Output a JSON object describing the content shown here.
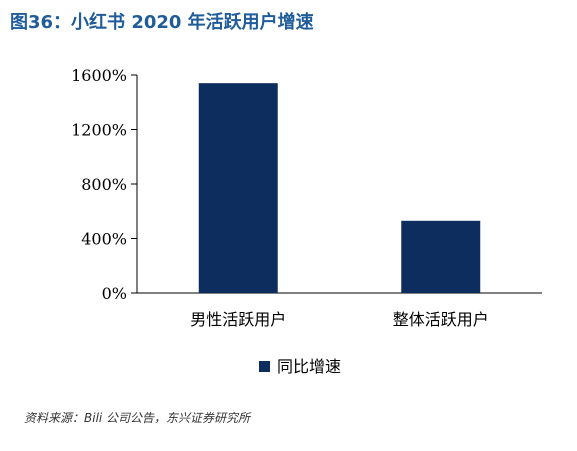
{
  "title": "图36：小红书 2020 年活跃用户增速",
  "source": "资料来源：Bili 公司公告，东兴证券研究所",
  "chart_data": {
    "type": "bar",
    "categories": [
      "男性活跃用户",
      "整体活跃用户"
    ],
    "series": [
      {
        "name": "同比增速",
        "values": [
          1540,
          530
        ],
        "color": "#0c2d5e"
      }
    ],
    "ylim": [
      0,
      1600
    ],
    "yticks": [
      0,
      400,
      800,
      1200,
      1600
    ],
    "ytick_labels": [
      "0%",
      "400%",
      "800%",
      "1200%",
      "1600%"
    ],
    "grid": false,
    "legend": "bottom"
  }
}
